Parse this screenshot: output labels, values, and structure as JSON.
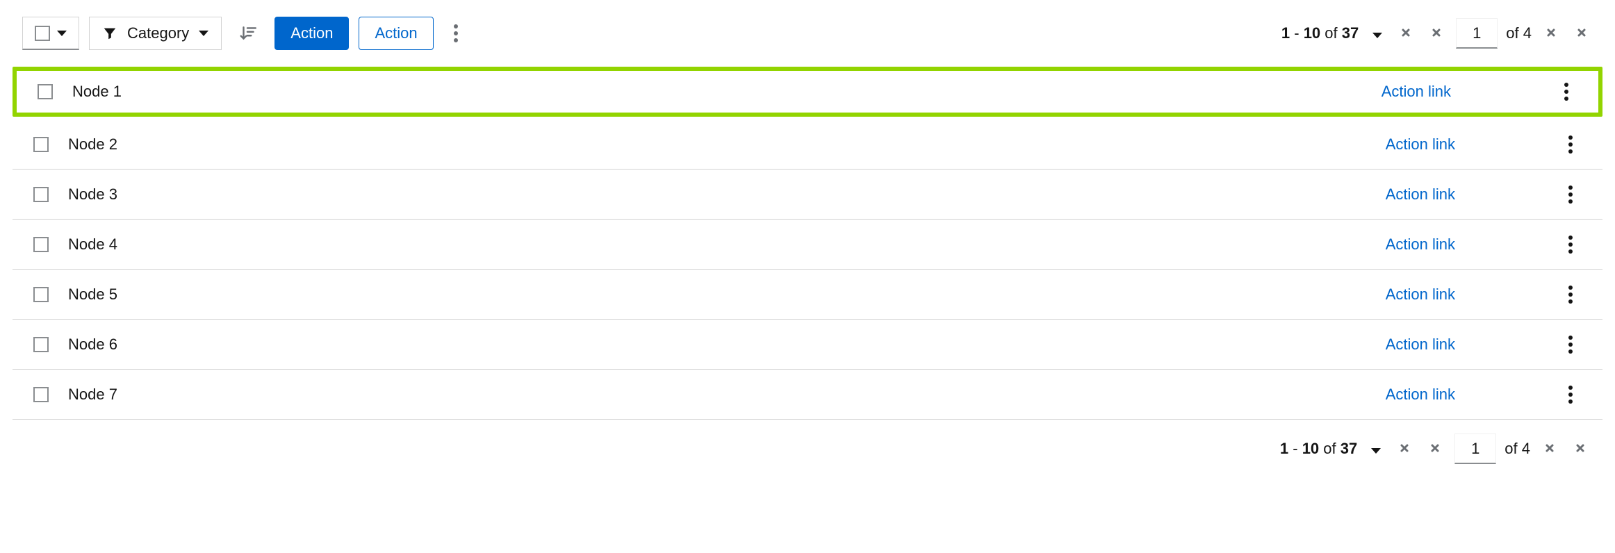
{
  "toolbar": {
    "filter_label": "Category",
    "primary_action_label": "Action",
    "secondary_action_label": "Action"
  },
  "pagination": {
    "range_start": "1",
    "range_end": "10",
    "total_items": "37",
    "of_word_items": "of",
    "dash": " - ",
    "current_page": "1",
    "total_pages": "4",
    "of_word_pages": "of"
  },
  "rows": [
    {
      "name": "Node 1",
      "action": "Action link",
      "highlighted": true
    },
    {
      "name": "Node 2",
      "action": "Action link",
      "highlighted": false
    },
    {
      "name": "Node 3",
      "action": "Action link",
      "highlighted": false
    },
    {
      "name": "Node 4",
      "action": "Action link",
      "highlighted": false
    },
    {
      "name": "Node 5",
      "action": "Action link",
      "highlighted": false
    },
    {
      "name": "Node 6",
      "action": "Action link",
      "highlighted": false
    },
    {
      "name": "Node 7",
      "action": "Action link",
      "highlighted": false
    }
  ],
  "colors": {
    "primary": "#0066cc",
    "highlight_border": "#92d400",
    "row_border": "#d2d2d2",
    "muted": "#6a6e73",
    "text": "#151515",
    "control_border": "#d2d2d2",
    "control_bottom": "#8a8d90"
  }
}
